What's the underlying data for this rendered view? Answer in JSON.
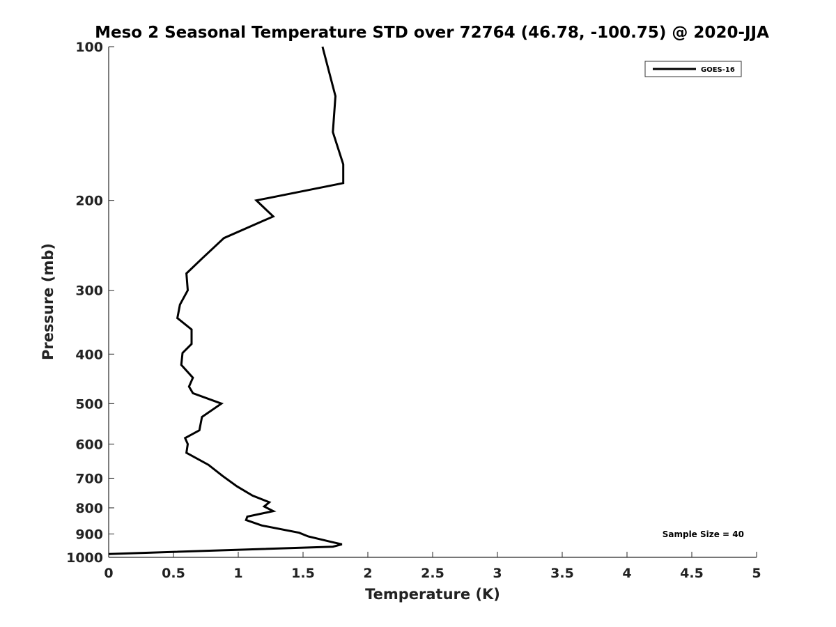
{
  "chart_data": {
    "type": "line",
    "title": "Meso 2 Seasonal Temperature STD over 72764 (46.78, -100.75) @ 2020-JJA",
    "xlabel": "Temperature (K)",
    "ylabel": "Pressure (mb)",
    "xlim": [
      0,
      5
    ],
    "ylim": [
      100,
      1000
    ],
    "y_scale": "log",
    "y_inverted": true,
    "x_ticks": [
      0,
      0.5,
      1,
      1.5,
      2,
      2.5,
      3,
      3.5,
      4,
      4.5,
      5
    ],
    "x_tick_labels": [
      "0",
      "0.5",
      "1",
      "1.5",
      "2",
      "2.5",
      "3",
      "3.5",
      "4",
      "4.5",
      "5"
    ],
    "y_ticks": [
      100,
      200,
      300,
      400,
      500,
      600,
      700,
      800,
      900,
      1000
    ],
    "y_tick_labels": [
      "100",
      "200",
      "300",
      "400",
      "500",
      "600",
      "700",
      "800",
      "900",
      "1000"
    ],
    "grid": false,
    "legend_position": "top-right",
    "annotation": "Sample Size = 40",
    "series": [
      {
        "name": "GOES-16",
        "color": "#000000",
        "points": [
          [
            1.65,
            100
          ],
          [
            1.75,
            125
          ],
          [
            1.73,
            147
          ],
          [
            1.81,
            170
          ],
          [
            1.81,
            185
          ],
          [
            1.14,
            200
          ],
          [
            1.27,
            215
          ],
          [
            0.89,
            237
          ],
          [
            0.72,
            260
          ],
          [
            0.6,
            278
          ],
          [
            0.61,
            300
          ],
          [
            0.55,
            320
          ],
          [
            0.53,
            340
          ],
          [
            0.64,
            358
          ],
          [
            0.64,
            382
          ],
          [
            0.57,
            398
          ],
          [
            0.56,
            420
          ],
          [
            0.65,
            445
          ],
          [
            0.62,
            463
          ],
          [
            0.65,
            477
          ],
          [
            0.87,
            500
          ],
          [
            0.72,
            531
          ],
          [
            0.7,
            564
          ],
          [
            0.59,
            584
          ],
          [
            0.61,
            600
          ],
          [
            0.6,
            624
          ],
          [
            0.77,
            659
          ],
          [
            0.88,
            693
          ],
          [
            0.99,
            726
          ],
          [
            1.11,
            757
          ],
          [
            1.24,
            780
          ],
          [
            1.2,
            795
          ],
          [
            1.27,
            812
          ],
          [
            1.07,
            832
          ],
          [
            1.06,
            845
          ],
          [
            1.18,
            866
          ],
          [
            1.47,
            895
          ],
          [
            1.54,
            910
          ],
          [
            1.72,
            933
          ],
          [
            1.8,
            943
          ],
          [
            1.73,
            953
          ],
          [
            0.0,
            985
          ]
        ]
      }
    ]
  }
}
